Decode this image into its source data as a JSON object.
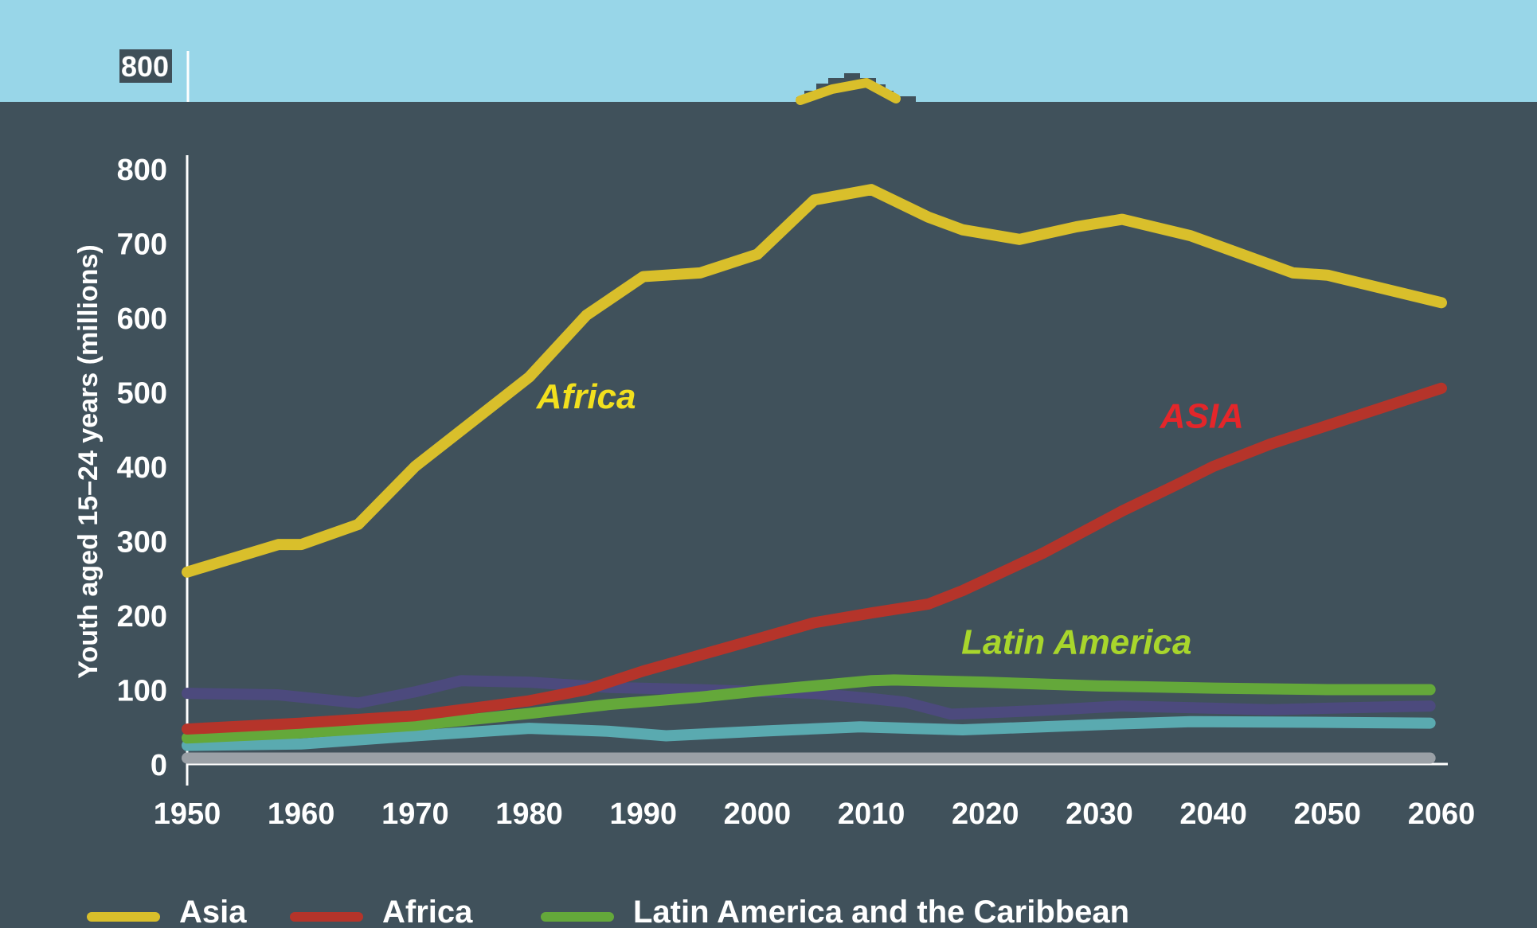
{
  "chart_data": {
    "type": "line",
    "ylabel": "Youth aged 15–24 years (millions)",
    "xlabel": "",
    "xlim": [
      1950,
      2060
    ],
    "ylim": [
      0,
      800
    ],
    "x_ticks": [
      1950,
      1960,
      1970,
      1980,
      1990,
      2000,
      2010,
      2020,
      2030,
      2040,
      2050,
      2060
    ],
    "y_ticks": [
      0,
      100,
      200,
      300,
      400,
      500,
      600,
      700,
      800
    ],
    "overlay_tick_label": "800",
    "grid": false,
    "legend_position": "bottom",
    "series": [
      {
        "name": "Asia",
        "color": "#d9bf2b",
        "points": [
          [
            1950,
            258
          ],
          [
            1958,
            295
          ],
          [
            1960,
            295
          ],
          [
            1965,
            322
          ],
          [
            1970,
            400
          ],
          [
            1980,
            520
          ],
          [
            1985,
            603
          ],
          [
            1990,
            655
          ],
          [
            1995,
            660
          ],
          [
            2000,
            685
          ],
          [
            2005,
            758
          ],
          [
            2010,
            772
          ],
          [
            2015,
            735
          ],
          [
            2018,
            718
          ],
          [
            2023,
            705
          ],
          [
            2028,
            722
          ],
          [
            2032,
            732
          ],
          [
            2038,
            710
          ],
          [
            2047,
            660
          ],
          [
            2050,
            657
          ],
          [
            2060,
            620
          ]
        ]
      },
      {
        "name": "Africa",
        "color": "#b5342a",
        "points": [
          [
            1950,
            47
          ],
          [
            1960,
            55
          ],
          [
            1970,
            65
          ],
          [
            1980,
            85
          ],
          [
            1985,
            100
          ],
          [
            1990,
            125
          ],
          [
            2000,
            168
          ],
          [
            2005,
            190
          ],
          [
            2010,
            203
          ],
          [
            2015,
            215
          ],
          [
            2018,
            233
          ],
          [
            2025,
            283
          ],
          [
            2032,
            340
          ],
          [
            2037,
            377
          ],
          [
            2040,
            400
          ],
          [
            2045,
            430
          ],
          [
            2050,
            455
          ],
          [
            2055,
            480
          ],
          [
            2060,
            505
          ]
        ]
      },
      {
        "name": "Latin America and the Caribbean",
        "color": "#64a83a",
        "points": [
          [
            1950,
            35
          ],
          [
            1960,
            42
          ],
          [
            1970,
            52
          ],
          [
            1980,
            68
          ],
          [
            1987,
            80
          ],
          [
            1995,
            90
          ],
          [
            2000,
            98
          ],
          [
            2010,
            112
          ],
          [
            2012,
            113
          ],
          [
            2020,
            110
          ],
          [
            2030,
            105
          ],
          [
            2040,
            102
          ],
          [
            2050,
            100
          ],
          [
            2059,
            100
          ]
        ]
      },
      {
        "color": "#4c4a7d",
        "points": [
          [
            1950,
            95
          ],
          [
            1958,
            93
          ],
          [
            1965,
            82
          ],
          [
            1970,
            97
          ],
          [
            1974,
            112
          ],
          [
            1980,
            110
          ],
          [
            1987,
            103
          ],
          [
            1995,
            100
          ],
          [
            2005,
            95
          ],
          [
            2010,
            88
          ],
          [
            2013,
            83
          ],
          [
            2017,
            67
          ],
          [
            2025,
            72
          ],
          [
            2032,
            78
          ],
          [
            2040,
            75
          ],
          [
            2045,
            73
          ],
          [
            2050,
            75
          ],
          [
            2059,
            78
          ]
        ]
      },
      {
        "color": "#5aaab0",
        "points": [
          [
            1950,
            25
          ],
          [
            1960,
            27
          ],
          [
            1970,
            38
          ],
          [
            1980,
            48
          ],
          [
            1987,
            44
          ],
          [
            1992,
            38
          ],
          [
            2000,
            44
          ],
          [
            2009,
            50
          ],
          [
            2018,
            46
          ],
          [
            2025,
            50
          ],
          [
            2030,
            53
          ],
          [
            2038,
            57
          ],
          [
            2050,
            56
          ],
          [
            2059,
            55
          ]
        ]
      },
      {
        "color": "#9aa0a6",
        "points": [
          [
            1950,
            8
          ],
          [
            2059,
            8
          ]
        ]
      }
    ],
    "annotations": [
      {
        "text": "Africa",
        "x": 1985,
        "y": 478,
        "color": "#f2e01e"
      },
      {
        "text": "ASIA",
        "x": 2039,
        "y": 452,
        "color": "#e4262a"
      },
      {
        "text": "Latin America",
        "x": 2028,
        "y": 148,
        "color": "#a8d62c"
      }
    ]
  }
}
